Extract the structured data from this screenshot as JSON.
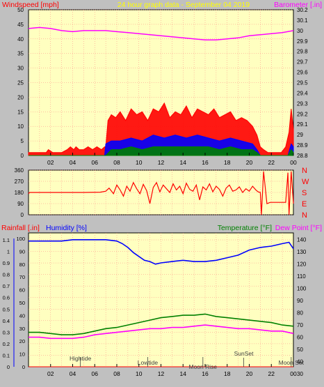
{
  "colors": {
    "background": "#c0c0c0",
    "plot_bg": "#ffffc0",
    "grid": "#ff8080",
    "wind_speed": "#ff0000",
    "wind_mid": "#0000ff",
    "wind_low": "#008000",
    "barometer": "#ff00ff",
    "direction": "#ff0000",
    "rainfall": "#ff0000",
    "humidity": "#0000ff",
    "temperature": "#008000",
    "dewpoint": "#ff00ff",
    "title": "#ffff00",
    "tick_text": "#000000",
    "event_text": "#404040"
  },
  "header": {
    "windspeed_label": "Windspeed [mph]",
    "title": "24 hour graph data - September 04 2019",
    "barometer_label": "Barometer [.in]"
  },
  "bottom_header": {
    "rainfall_label": "Rainfall [.in]",
    "humidity_label": "Humidity [%]",
    "temperature_label": "Temperature [°F]",
    "dewpoint_label": "Dew Point [°F]"
  },
  "x_axis": {
    "ticks": [
      "02",
      "04",
      "06",
      "08",
      "10",
      "12",
      "14",
      "16",
      "18",
      "20",
      "22",
      "00"
    ],
    "range_hours": [
      0,
      24
    ]
  },
  "compass": [
    "N",
    "W",
    "S",
    "E",
    "N"
  ],
  "chart_data": [
    {
      "type": "line",
      "panel": "wind-barometer",
      "x_unit": "hour of day",
      "y_left": {
        "ylim": [
          0,
          50
        ],
        "ticks": [
          0,
          5,
          10,
          15,
          20,
          25,
          30,
          35,
          40,
          45,
          50
        ]
      },
      "y_right": {
        "ylim": [
          28.8,
          30.2
        ],
        "ticks": [
          "28.8",
          "28.9",
          "29",
          "29.1",
          "29.2",
          "29.3",
          "29.4",
          "29.5",
          "29.6",
          "29.7",
          "29.8",
          "29.9",
          "30",
          "30.1",
          "30.2"
        ]
      },
      "series": [
        {
          "name": "Windspeed",
          "axis": "left",
          "style": "filled",
          "x": [
            0,
            0.6,
            1.2,
            1.6,
            1.8,
            2.2,
            2.5,
            3.0,
            3.5,
            3.8,
            4.1,
            4.3,
            4.6,
            5.0,
            5.4,
            5.8,
            6.2,
            6.6,
            6.9,
            7.0,
            7.2,
            7.5,
            7.9,
            8.3,
            8.8,
            9.3,
            9.8,
            10.3,
            10.8,
            11.3,
            11.8,
            12.3,
            12.8,
            13.3,
            13.8,
            14.3,
            14.8,
            15.3,
            15.8,
            16.3,
            16.8,
            17.3,
            17.8,
            18.3,
            18.8,
            19.3,
            19.8,
            20.3,
            20.7,
            21.0,
            21.3,
            21.7,
            22.1,
            22.5,
            22.9,
            23.3,
            23.6,
            23.8,
            24.0
          ],
          "y": [
            1,
            1,
            1,
            1,
            2,
            1,
            1,
            1,
            2,
            3,
            2,
            3,
            2,
            2,
            3,
            2,
            3,
            2,
            3,
            3,
            12,
            14,
            13,
            15,
            12,
            16,
            14,
            15,
            12,
            16,
            15,
            18,
            13,
            15,
            14,
            17,
            13,
            16,
            15,
            14,
            16,
            13,
            14,
            15,
            12,
            13,
            12,
            10,
            7,
            3,
            2,
            1,
            1,
            1,
            1,
            3,
            8,
            16,
            9
          ]
        },
        {
          "name": "Windspeed (avg)",
          "axis": "left",
          "style": "filled",
          "x": [
            0,
            6.9,
            7.0,
            7.5,
            8.3,
            9.3,
            10.3,
            11.3,
            12.3,
            13.3,
            14.3,
            15.3,
            16.3,
            17.3,
            18.3,
            19.3,
            20.3,
            20.7,
            21.0,
            23.5,
            23.8,
            24.0
          ],
          "y": [
            0,
            0,
            4,
            5,
            5,
            6,
            5,
            7,
            6,
            7,
            6,
            7,
            6,
            5,
            6,
            5,
            4,
            2,
            0,
            0,
            4,
            3
          ]
        },
        {
          "name": "Windspeed (low)",
          "axis": "left",
          "style": "filled",
          "x": [
            0,
            7.0,
            7.5,
            8.3,
            9.3,
            10.3,
            11.3,
            12.3,
            13.3,
            14.3,
            15.3,
            16.3,
            17.3,
            18.3,
            19.3,
            20.3,
            20.7,
            21.0,
            23.5,
            23.8,
            24.0
          ],
          "y": [
            0,
            0,
            2,
            2,
            3,
            2,
            3,
            3,
            3,
            3,
            3,
            3,
            2,
            3,
            2,
            2,
            1,
            0,
            0,
            2,
            1
          ]
        },
        {
          "name": "Barometer",
          "axis": "right",
          "style": "line",
          "x": [
            0,
            1,
            2,
            3,
            4,
            5,
            6,
            7,
            8,
            9,
            10,
            11,
            12,
            13,
            14,
            15,
            16,
            17,
            18,
            19,
            20,
            21,
            22,
            23,
            24
          ],
          "y": [
            30.02,
            30.03,
            30.02,
            30.0,
            29.99,
            30.0,
            30.0,
            30.0,
            29.99,
            29.98,
            29.97,
            29.96,
            29.95,
            29.94,
            29.93,
            29.92,
            29.91,
            29.91,
            29.92,
            29.93,
            29.95,
            29.96,
            29.97,
            29.98,
            30.0
          ]
        }
      ]
    },
    {
      "type": "line",
      "panel": "wind-direction",
      "x_unit": "hour of day",
      "ylim": [
        0,
        360
      ],
      "y_ticks": [
        0,
        90,
        180,
        270,
        360
      ],
      "series": [
        {
          "name": "Wind direction",
          "axis": "left",
          "style": "line",
          "x": [
            0,
            0.1,
            5.0,
            6.5,
            7.0,
            7.3,
            7.7,
            8.0,
            8.3,
            8.6,
            8.9,
            9.2,
            9.5,
            9.8,
            10.1,
            10.4,
            10.7,
            11.0,
            11.3,
            11.6,
            11.9,
            12.2,
            12.5,
            12.8,
            13.1,
            13.4,
            13.7,
            14.0,
            14.3,
            14.6,
            14.9,
            15.2,
            15.5,
            15.8,
            16.1,
            16.4,
            16.7,
            17.0,
            17.3,
            17.6,
            17.9,
            18.2,
            18.5,
            18.8,
            19.1,
            19.4,
            19.7,
            20.0,
            20.3,
            20.6,
            20.8,
            21.0,
            21.1,
            21.3,
            21.6,
            21.9,
            22.5,
            23.0,
            23.3,
            23.5,
            23.6,
            23.8,
            24.0
          ],
          "y": [
            170,
            180,
            180,
            182,
            190,
            215,
            170,
            240,
            200,
            150,
            230,
            190,
            260,
            210,
            170,
            245,
            195,
            90,
            220,
            260,
            185,
            240,
            210,
            180,
            250,
            200,
            230,
            170,
            255,
            205,
            190,
            240,
            120,
            225,
            200,
            250,
            185,
            230,
            205,
            150,
            215,
            240,
            190,
            200,
            225,
            180,
            210,
            190,
            230,
            200,
            185,
            180,
            0,
            350,
            90,
            100,
            100,
            100,
            100,
            340,
            0,
            350,
            90
          ]
        }
      ]
    },
    {
      "type": "line",
      "panel": "rain-humidity-temperature",
      "x_unit": "hour of day",
      "y_left_outer": {
        "name": "Rainfall",
        "ylim": [
          0,
          1.1
        ],
        "ticks": [
          "0",
          "0.1",
          "0.2",
          "0.3",
          "0.4",
          "0.5",
          "0.6",
          "0.7",
          "0.8",
          "0.9",
          "1",
          "1.1"
        ]
      },
      "y_left_inner": {
        "name": "Humidity",
        "ylim": [
          0,
          100
        ],
        "ticks": [
          0,
          10,
          20,
          30,
          40,
          50,
          60,
          70,
          80,
          90,
          100
        ]
      },
      "y_right": {
        "name": "Temperature",
        "ylim": [
          30,
          145
        ],
        "ticks": [
          30,
          40,
          50,
          60,
          70,
          80,
          90,
          100,
          110,
          120,
          130,
          140
        ]
      },
      "series": [
        {
          "name": "Rainfall",
          "axis": "left_outer",
          "style": "line",
          "x": [
            0,
            24
          ],
          "y": [
            0,
            0
          ]
        },
        {
          "name": "Humidity",
          "axis": "left_inner",
          "style": "line",
          "x": [
            0,
            1,
            2,
            3,
            4,
            5,
            6,
            7,
            8,
            8.5,
            9,
            9.5,
            10,
            10.5,
            11,
            11.5,
            12,
            13,
            14,
            15,
            16,
            17,
            18,
            19,
            20,
            21,
            22,
            23,
            23.6,
            24
          ],
          "y": [
            98,
            98,
            98,
            98,
            99,
            99,
            99,
            99,
            98,
            96,
            93,
            89,
            86,
            83,
            82,
            80,
            81,
            82,
            83,
            82,
            82,
            83,
            85,
            87,
            91,
            93,
            94,
            96,
            97,
            92
          ]
        },
        {
          "name": "Temperature",
          "axis": "right",
          "style": "line",
          "x": [
            0,
            1,
            2,
            3,
            4,
            5,
            6,
            7,
            8,
            9,
            10,
            11,
            12,
            13,
            14,
            15,
            16,
            17,
            18,
            19,
            20,
            21,
            22,
            23,
            24
          ],
          "y": [
            64,
            64,
            63,
            62,
            62,
            63,
            65,
            67,
            68,
            70,
            72,
            74,
            76,
            77,
            78,
            78,
            79,
            77,
            76,
            75,
            74,
            73,
            72,
            70,
            69
          ]
        },
        {
          "name": "Dew Point",
          "axis": "right",
          "style": "line",
          "x": [
            0,
            1,
            2,
            3,
            4,
            5,
            6,
            7,
            8,
            9,
            10,
            11,
            12,
            13,
            14,
            15,
            16,
            17,
            18,
            19,
            20,
            21,
            22,
            23,
            24
          ],
          "y": [
            60,
            60,
            59,
            59,
            59,
            60,
            62,
            63,
            64,
            65,
            66,
            67,
            67,
            68,
            68,
            69,
            70,
            69,
            68,
            67,
            67,
            66,
            65,
            65,
            63
          ]
        }
      ],
      "events": [
        {
          "label": "Hightide",
          "hour": 4.7,
          "row": 0
        },
        {
          "label": "Lowtide",
          "hour": 10.8,
          "row": 1
        },
        {
          "label": "Moon Rise",
          "hour": 15.8,
          "row": 2
        },
        {
          "label": "SunSet",
          "hour": 19.5,
          "row": -1
        },
        {
          "label": "Moon Set",
          "hour": 23.8,
          "row": 1
        }
      ]
    }
  ]
}
